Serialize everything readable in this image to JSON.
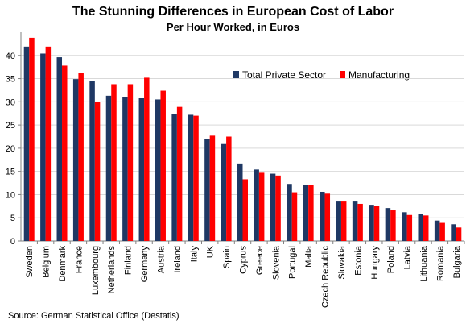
{
  "chart_data": {
    "type": "bar",
    "title": "The  Stunning  Differences in European Cost of Labor",
    "subtitle": "Per Hour Worked, in Euros",
    "source": "Source: German Statistical Office (Destatis)",
    "categories": [
      "Sweden",
      "Belgium",
      "Denmark",
      "France",
      "Luxembourg",
      "Netherlands",
      "Finland",
      "Germany",
      "Austria",
      "Ireland",
      "Italy",
      "UK",
      "Spain",
      "Cyprus",
      "Greece",
      "Slovenia",
      "Portugal",
      "Malta",
      "Czech Republic",
      "Slovakia",
      "Estonia",
      "Hungary",
      "Poland",
      "Latvia",
      "Lithuania",
      "Romania",
      "Bulgaria"
    ],
    "series": [
      {
        "name": "Total Private Sector",
        "color": "#1f3864",
        "values": [
          41.9,
          40.4,
          39.6,
          34.9,
          34.4,
          31.3,
          31.1,
          30.9,
          30.5,
          27.4,
          27.2,
          21.9,
          20.9,
          16.7,
          15.4,
          14.5,
          12.3,
          12.1,
          10.6,
          8.5,
          8.5,
          7.8,
          7.1,
          6.2,
          5.8,
          4.4,
          3.6
        ]
      },
      {
        "name": "Manufacturing",
        "color": "#ff0000",
        "values": [
          43.8,
          41.9,
          37.8,
          36.3,
          30.0,
          33.8,
          33.8,
          35.2,
          32.4,
          28.9,
          27.0,
          22.7,
          22.5,
          13.3,
          14.7,
          14.1,
          10.5,
          12.1,
          10.2,
          8.5,
          8.0,
          7.6,
          6.6,
          5.6,
          5.5,
          3.9,
          2.9
        ]
      }
    ],
    "ylim": [
      0,
      45
    ],
    "yticks": [
      0,
      5,
      10,
      15,
      20,
      25,
      30,
      35,
      40
    ],
    "grid": true,
    "legend": "top-right"
  }
}
